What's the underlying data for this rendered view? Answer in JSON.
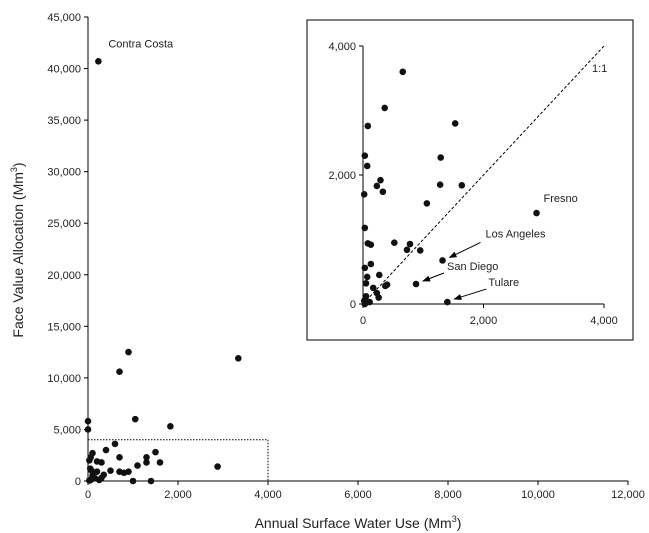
{
  "chart_data": [
    {
      "type": "scatter",
      "name": "main",
      "xlabel": "Annual Surface Water Use (Mm",
      "xlabel_sup": "3",
      "xlabel_end": ")",
      "ylabel": "Face Value Allocation (Mm",
      "ylabel_sup": "3",
      "ylabel_end": ")",
      "xlim": [
        0,
        12000
      ],
      "ylim": [
        0,
        45000
      ],
      "x_ticks": [
        0,
        2000,
        4000,
        6000,
        8000,
        10000,
        12000
      ],
      "x_tick_labels": [
        "0",
        "2,000",
        "4,000",
        "6,000",
        "8,000",
        "10,000",
        "12,000"
      ],
      "y_ticks": [
        0,
        5000,
        10000,
        15000,
        20000,
        25000,
        30000,
        35000,
        40000,
        45000
      ],
      "y_tick_labels": [
        "0",
        "5,000",
        "10,000",
        "15,000",
        "20,000",
        "25,000",
        "30,000",
        "35,000",
        "40,000",
        "45,000"
      ],
      "grid": false,
      "zoom_box": {
        "x": [
          0,
          4000
        ],
        "y": [
          0,
          4000
        ]
      },
      "labels": [
        {
          "text": "Contra Costa",
          "x": 230,
          "y": 40700
        }
      ],
      "points": [
        {
          "x": 230,
          "y": 40700
        },
        {
          "x": 900,
          "y": 12500
        },
        {
          "x": 3340,
          "y": 11900
        },
        {
          "x": 700,
          "y": 10600
        },
        {
          "x": 1050,
          "y": 6000
        },
        {
          "x": 1830,
          "y": 5300
        },
        {
          "x": 0,
          "y": 5800
        },
        {
          "x": 0,
          "y": 5000
        },
        {
          "x": 600,
          "y": 3600
        },
        {
          "x": 100,
          "y": 2700
        },
        {
          "x": 60,
          "y": 2300
        },
        {
          "x": 30,
          "y": 2000
        },
        {
          "x": 300,
          "y": 1800
        },
        {
          "x": 200,
          "y": 1900
        },
        {
          "x": 700,
          "y": 2300
        },
        {
          "x": 400,
          "y": 3000
        },
        {
          "x": 1300,
          "y": 2300
        },
        {
          "x": 1500,
          "y": 2800
        },
        {
          "x": 1600,
          "y": 1800
        },
        {
          "x": 1300,
          "y": 1800
        },
        {
          "x": 1100,
          "y": 1500
        },
        {
          "x": 700,
          "y": 900
        },
        {
          "x": 900,
          "y": 900
        },
        {
          "x": 800,
          "y": 800
        },
        {
          "x": 500,
          "y": 1000
        },
        {
          "x": 200,
          "y": 900
        },
        {
          "x": 50,
          "y": 1200
        },
        {
          "x": 80,
          "y": 1000
        },
        {
          "x": 100,
          "y": 500
        },
        {
          "x": 150,
          "y": 300
        },
        {
          "x": 300,
          "y": 300
        },
        {
          "x": 350,
          "y": 600
        },
        {
          "x": 250,
          "y": 100
        },
        {
          "x": 60,
          "y": 100
        },
        {
          "x": 30,
          "y": 50
        },
        {
          "x": 1000,
          "y": 0
        },
        {
          "x": 1400,
          "y": 0
        },
        {
          "x": 2880,
          "y": 1400
        }
      ]
    },
    {
      "type": "scatter",
      "name": "inset",
      "xlim": [
        0,
        4000
      ],
      "ylim": [
        0,
        4000
      ],
      "x_ticks": [
        0,
        2000,
        4000
      ],
      "x_tick_labels": [
        "0",
        "2,000",
        "4,000"
      ],
      "y_ticks": [
        0,
        2000,
        4000
      ],
      "y_tick_labels": [
        "0",
        "2,000",
        "4,000"
      ],
      "grid": false,
      "reference_line": {
        "label": "1:1",
        "from": [
          0,
          0
        ],
        "to": [
          4000,
          4000
        ]
      },
      "labels": [
        {
          "text": "Fresno",
          "x": 2880,
          "y": 1410
        },
        {
          "text": "Los Angeles",
          "x": 1320,
          "y": 675
        },
        {
          "text": "San Diego",
          "x": 880,
          "y": 310
        },
        {
          "text": "Tulare",
          "x": 1400,
          "y": 30
        }
      ],
      "points": [
        {
          "x": 660,
          "y": 3600
        },
        {
          "x": 360,
          "y": 3040
        },
        {
          "x": 1530,
          "y": 2800
        },
        {
          "x": 80,
          "y": 2760
        },
        {
          "x": 30,
          "y": 2300
        },
        {
          "x": 1290,
          "y": 2270
        },
        {
          "x": 70,
          "y": 2140
        },
        {
          "x": 290,
          "y": 1920
        },
        {
          "x": 230,
          "y": 1830
        },
        {
          "x": 330,
          "y": 1740
        },
        {
          "x": 20,
          "y": 1700
        },
        {
          "x": 1280,
          "y": 1850
        },
        {
          "x": 1640,
          "y": 1840
        },
        {
          "x": 1060,
          "y": 1560
        },
        {
          "x": 2880,
          "y": 1410
        },
        {
          "x": 30,
          "y": 1180
        },
        {
          "x": 80,
          "y": 940
        },
        {
          "x": 130,
          "y": 920
        },
        {
          "x": 520,
          "y": 950
        },
        {
          "x": 780,
          "y": 930
        },
        {
          "x": 730,
          "y": 840
        },
        {
          "x": 950,
          "y": 830
        },
        {
          "x": 1320,
          "y": 675
        },
        {
          "x": 130,
          "y": 620
        },
        {
          "x": 30,
          "y": 560
        },
        {
          "x": 270,
          "y": 450
        },
        {
          "x": 70,
          "y": 420
        },
        {
          "x": 50,
          "y": 320
        },
        {
          "x": 170,
          "y": 250
        },
        {
          "x": 370,
          "y": 280
        },
        {
          "x": 400,
          "y": 300
        },
        {
          "x": 880,
          "y": 310
        },
        {
          "x": 230,
          "y": 170
        },
        {
          "x": 260,
          "y": 100
        },
        {
          "x": 50,
          "y": 120
        },
        {
          "x": 20,
          "y": 50
        },
        {
          "x": 60,
          "y": 30
        },
        {
          "x": 110,
          "y": 30
        },
        {
          "x": 30,
          "y": 0
        },
        {
          "x": 1400,
          "y": 30
        }
      ]
    }
  ]
}
